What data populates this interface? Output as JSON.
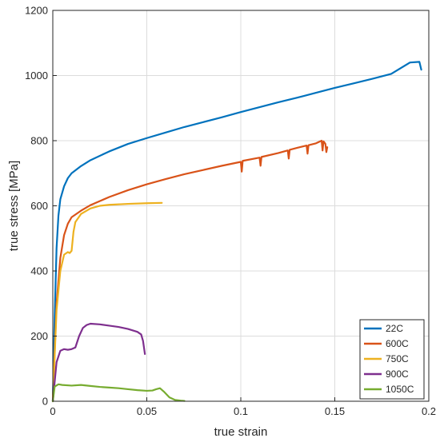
{
  "chart_data": {
    "type": "line",
    "title": "",
    "xlabel": "true strain",
    "ylabel": "true stress [MPa]",
    "xlim": [
      0,
      0.2
    ],
    "ylim": [
      0,
      1200
    ],
    "xticks": [
      0,
      0.05,
      0.1,
      0.15,
      0.2
    ],
    "xtick_labels": [
      "0",
      "0.05",
      "0.1",
      "0.15",
      "0.2"
    ],
    "yticks": [
      0,
      200,
      400,
      600,
      800,
      1000,
      1200
    ],
    "ytick_labels": [
      "0",
      "200",
      "400",
      "600",
      "800",
      "1000",
      "1200"
    ],
    "grid": true,
    "legend_position": "bottom-right",
    "series": [
      {
        "name": "22C",
        "color": "#0072BD",
        "points": [
          [
            0,
            0
          ],
          [
            0.001,
            260
          ],
          [
            0.002,
            470
          ],
          [
            0.003,
            570
          ],
          [
            0.004,
            620
          ],
          [
            0.006,
            660
          ],
          [
            0.008,
            685
          ],
          [
            0.01,
            700
          ],
          [
            0.015,
            722
          ],
          [
            0.02,
            740
          ],
          [
            0.03,
            767
          ],
          [
            0.04,
            790
          ],
          [
            0.05,
            808
          ],
          [
            0.06,
            825
          ],
          [
            0.07,
            842
          ],
          [
            0.08,
            857
          ],
          [
            0.09,
            872
          ],
          [
            0.1,
            888
          ],
          [
            0.11,
            903
          ],
          [
            0.12,
            918
          ],
          [
            0.13,
            932
          ],
          [
            0.14,
            947
          ],
          [
            0.15,
            962
          ],
          [
            0.16,
            976
          ],
          [
            0.17,
            990
          ],
          [
            0.18,
            1005
          ],
          [
            0.19,
            1040
          ],
          [
            0.195,
            1042
          ],
          [
            0.196,
            1018
          ]
        ]
      },
      {
        "name": "600C",
        "color": "#D95319",
        "points": [
          [
            0,
            0
          ],
          [
            0.002,
            300
          ],
          [
            0.004,
            440
          ],
          [
            0.006,
            510
          ],
          [
            0.008,
            545
          ],
          [
            0.01,
            565
          ],
          [
            0.015,
            585
          ],
          [
            0.02,
            602
          ],
          [
            0.03,
            627
          ],
          [
            0.04,
            648
          ],
          [
            0.05,
            666
          ],
          [
            0.06,
            682
          ],
          [
            0.07,
            697
          ],
          [
            0.08,
            710
          ],
          [
            0.09,
            723
          ],
          [
            0.1,
            735
          ],
          [
            0.1005,
            705
          ],
          [
            0.101,
            738
          ],
          [
            0.11,
            748
          ],
          [
            0.1105,
            723
          ],
          [
            0.111,
            750
          ],
          [
            0.12,
            762
          ],
          [
            0.125,
            770
          ],
          [
            0.1255,
            745
          ],
          [
            0.126,
            772
          ],
          [
            0.13,
            778
          ],
          [
            0.135,
            785
          ],
          [
            0.1355,
            760
          ],
          [
            0.136,
            786
          ],
          [
            0.14,
            792
          ],
          [
            0.143,
            800
          ],
          [
            0.1435,
            770
          ],
          [
            0.144,
            798
          ],
          [
            0.145,
            790
          ],
          [
            0.1455,
            765
          ],
          [
            0.146,
            780
          ]
        ]
      },
      {
        "name": "750C",
        "color": "#EDB120",
        "points": [
          [
            0,
            0
          ],
          [
            0.002,
            280
          ],
          [
            0.004,
            400
          ],
          [
            0.006,
            450
          ],
          [
            0.008,
            458
          ],
          [
            0.009,
            455
          ],
          [
            0.01,
            462
          ],
          [
            0.011,
            520
          ],
          [
            0.012,
            550
          ],
          [
            0.015,
            575
          ],
          [
            0.02,
            592
          ],
          [
            0.025,
            600
          ],
          [
            0.03,
            603
          ],
          [
            0.04,
            606
          ],
          [
            0.05,
            608
          ],
          [
            0.058,
            609
          ]
        ]
      },
      {
        "name": "900C",
        "color": "#7E2F8E",
        "points": [
          [
            0,
            0
          ],
          [
            0.002,
            120
          ],
          [
            0.004,
            155
          ],
          [
            0.006,
            160
          ],
          [
            0.008,
            158
          ],
          [
            0.01,
            160
          ],
          [
            0.012,
            165
          ],
          [
            0.014,
            200
          ],
          [
            0.016,
            225
          ],
          [
            0.018,
            234
          ],
          [
            0.02,
            238
          ],
          [
            0.025,
            236
          ],
          [
            0.03,
            232
          ],
          [
            0.035,
            228
          ],
          [
            0.04,
            222
          ],
          [
            0.045,
            213
          ],
          [
            0.047,
            205
          ],
          [
            0.048,
            185
          ],
          [
            0.049,
            145
          ]
        ]
      },
      {
        "name": "1050C",
        "color": "#77AC30",
        "points": [
          [
            0,
            0
          ],
          [
            0.001,
            45
          ],
          [
            0.003,
            52
          ],
          [
            0.005,
            50
          ],
          [
            0.01,
            48
          ],
          [
            0.015,
            50
          ],
          [
            0.02,
            47
          ],
          [
            0.025,
            44
          ],
          [
            0.03,
            42
          ],
          [
            0.035,
            40
          ],
          [
            0.04,
            37
          ],
          [
            0.045,
            34
          ],
          [
            0.05,
            32
          ],
          [
            0.053,
            33
          ],
          [
            0.055,
            37
          ],
          [
            0.057,
            40
          ],
          [
            0.059,
            30
          ],
          [
            0.062,
            12
          ],
          [
            0.065,
            4
          ],
          [
            0.068,
            2
          ],
          [
            0.07,
            1
          ]
        ]
      }
    ]
  }
}
